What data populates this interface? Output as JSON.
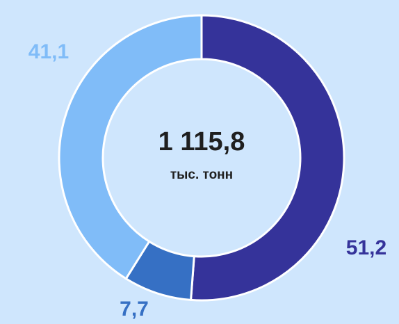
{
  "chart_data": {
    "type": "donut",
    "values": [
      51.2,
      7.7,
      41.1
    ],
    "value_labels": [
      "51,2",
      "7,7",
      "41,1"
    ],
    "colors": [
      "#35339a",
      "#3670c4",
      "#80bcf8"
    ],
    "center_title": "1 115,8",
    "center_subtitle": "тыс. тонн"
  }
}
